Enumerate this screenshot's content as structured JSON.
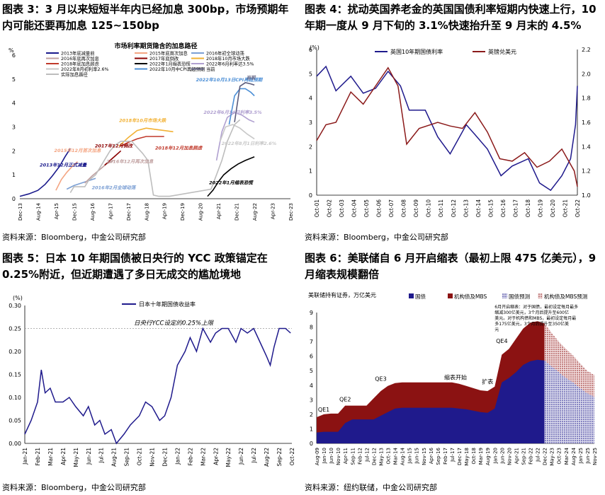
{
  "fig3": {
    "title": "图表 3：3 月以来短短半年内已经加息 300bp，市场预期年内可能还要再加息 125~150bp",
    "source": "资料来源：Bloomberg，中金公司研究部",
    "chart_data": {
      "type": "line",
      "chart_title": "市场利率期货隐含的加息路径",
      "yunit": "%",
      "ylim": [
        0,
        6
      ],
      "yticks": [
        "0",
        "1",
        "2",
        "3",
        "4",
        "5",
        "6"
      ],
      "xticks": [
        "Dec-13",
        "Aug-14",
        "Apr-15",
        "Dec-15",
        "Aug-16",
        "Apr-17",
        "Dec-17",
        "Aug-18",
        "Apr-19",
        "Dec-19",
        "Aug-20",
        "Apr-21",
        "Dec-21",
        "Aug-22",
        "Apr-23",
        "Dec-23"
      ],
      "legend": [
        {
          "name": "2013年底减量前",
          "color": "#1a1a8c"
        },
        {
          "name": "2015年底首次加息",
          "color": "#f4a582"
        },
        {
          "name": "2016年初全球动荡",
          "color": "#7b9fd4"
        },
        {
          "name": "2016年底再次加息",
          "color": "#c0a0a0"
        },
        {
          "name": "2017年底倒改",
          "color": "#8b0000"
        },
        {
          "name": "2018年10月市场大跌",
          "color": "#f2b134"
        },
        {
          "name": "2018年底加息顾虑",
          "color": "#c0392b"
        },
        {
          "name": "2022年1月缩表恐慌",
          "color": "#000000"
        },
        {
          "name": "2022年6月利率达3.5%",
          "color": "#b0a0d0"
        },
        {
          "name": "2022年8月初利率2.6%",
          "color": "#c8c8c8"
        },
        {
          "name": "2022年10月中CPI再超预期",
          "color": "#4c8fd6"
        },
        {
          "name": "当前",
          "color": "#5a5a7a"
        },
        {
          "name": "实际加息路径",
          "color": "#bdbdbd"
        }
      ],
      "series": [
        {
          "name": "2013年底减量前",
          "color": "#1a1a8c",
          "x": [
            0,
            0.5,
            1,
            1.4,
            1.8,
            2.2,
            2.5,
            2.8
          ],
          "y": [
            0.1,
            0.2,
            0.35,
            0.6,
            0.95,
            1.35,
            1.75,
            2.1
          ]
        },
        {
          "name": "2015年底首次加息",
          "color": "#f4a582",
          "x": [
            2.0,
            2.3,
            2.6,
            2.9,
            3.2
          ],
          "y": [
            0.35,
            0.8,
            1.1,
            1.35,
            1.55
          ]
        },
        {
          "name": "2016年初全球动荡",
          "color": "#7b9fd4",
          "x": [
            2.6,
            3.0,
            3.4,
            3.8,
            4.2
          ],
          "y": [
            0.4,
            0.55,
            0.65,
            0.75,
            0.85
          ]
        },
        {
          "name": "2016年底再次加息",
          "color": "#c0a0a0",
          "x": [
            3.6,
            4.0,
            4.4,
            4.8,
            5.2
          ],
          "y": [
            0.65,
            0.95,
            1.2,
            1.45,
            1.6
          ]
        },
        {
          "name": "2017年底倒改",
          "color": "#8b0000",
          "x": [
            4.7,
            5.0,
            5.3,
            5.6
          ],
          "y": [
            1.4,
            1.6,
            1.8,
            2.0
          ]
        },
        {
          "name": "2018年10月市场大跌",
          "color": "#f2b134",
          "x": [
            5.5,
            6.0,
            6.5,
            7.0,
            7.5,
            8.0,
            8.5
          ],
          "y": [
            2.2,
            2.55,
            2.85,
            2.95,
            2.9,
            2.85,
            2.8
          ]
        },
        {
          "name": "2018年底加息顾虑",
          "color": "#c0392b",
          "x": [
            5.6,
            6.0,
            6.5,
            7.0,
            7.5,
            8.0
          ],
          "y": [
            2.2,
            2.35,
            2.5,
            2.6,
            2.6,
            2.6
          ]
        },
        {
          "name": "2022年1月缩表恐慌",
          "color": "#000000",
          "x": [
            10.4,
            10.7,
            11.0,
            11.3,
            11.7,
            12.1,
            12.5,
            13.0
          ],
          "y": [
            0.1,
            0.35,
            0.7,
            1.0,
            1.25,
            1.45,
            1.6,
            1.75
          ]
        },
        {
          "name": "2022年6月利率达3.5%",
          "color": "#b0a0d0",
          "x": [
            10.9,
            11.2,
            11.5,
            11.9,
            12.3,
            12.7,
            13.0
          ],
          "y": [
            1.6,
            2.8,
            3.4,
            3.6,
            3.5,
            3.3,
            3.2
          ]
        },
        {
          "name": "2022年8月初利率2.6%",
          "color": "#c8c8c8",
          "x": [
            11.1,
            11.4,
            11.8,
            12.2,
            12.6,
            13.0
          ],
          "y": [
            2.4,
            3.0,
            3.1,
            2.95,
            2.7,
            2.5
          ]
        },
        {
          "name": "2022年10月中CPI再超预期",
          "color": "#4c8fd6",
          "x": [
            11.6,
            11.9,
            12.2,
            12.5,
            12.8,
            13.0
          ],
          "y": [
            3.1,
            4.3,
            4.6,
            4.6,
            4.45,
            4.3
          ]
        },
        {
          "name": "当前",
          "color": "#5a5a7a",
          "x": [
            11.9,
            12.2,
            12.5,
            12.8,
            13.0
          ],
          "y": [
            3.2,
            4.7,
            4.85,
            4.8,
            4.75
          ]
        },
        {
          "name": "实际加息路径",
          "color": "#bdbdbd",
          "x": [
            2.8,
            3.0,
            3.6,
            3.8,
            4.2,
            4.4,
            4.6,
            4.8,
            5.0,
            5.3,
            5.6,
            5.9,
            6.2,
            6.5,
            6.8,
            7.1,
            7.4,
            7.7,
            8.0,
            8.3,
            10.6,
            10.9,
            11.2,
            11.5,
            11.9,
            12.2
          ],
          "y": [
            0.25,
            0.5,
            0.5,
            0.75,
            1.0,
            1.25,
            1.5,
            1.75,
            2.0,
            2.25,
            2.4,
            2.4,
            2.4,
            2.15,
            1.9,
            1.6,
            0.15,
            0.1,
            0.1,
            0.1,
            0.4,
            1.0,
            1.6,
            2.4,
            3.1,
            3.3
          ]
        }
      ],
      "annotations": [
        {
          "text": "2013年12月正式减量",
          "x": 2.4,
          "y": 1.35,
          "color": "#1a1a8c"
        },
        {
          "text": "2015年12月首次加息",
          "x": 3.2,
          "y": 1.95,
          "color": "#f4a582"
        },
        {
          "text": "2017年12月倒改",
          "x": 5.2,
          "y": 2.15,
          "color": "#8b0000"
        },
        {
          "text": "2016年2月全球动荡",
          "x": 5.2,
          "y": 0.4,
          "color": "#7b9fd4"
        },
        {
          "text": "2016年12月再次加息",
          "x": 6.1,
          "y": 1.5,
          "color": "#c0a0a0"
        },
        {
          "text": "2018年10月市场大跌",
          "x": 6.8,
          "y": 3.2,
          "color": "#f2b134"
        },
        {
          "text": "2018年12月加息顾虑",
          "x": 8.8,
          "y": 2.05,
          "color": "#c0392b"
        },
        {
          "text": "2022年10月13日CPI再超预期",
          "x": 11.6,
          "y": 4.9,
          "color": "#4c8fd6"
        },
        {
          "text": "2022年6月14日利率3.5%",
          "x": 11.8,
          "y": 3.55,
          "color": "#b0a0d0"
        },
        {
          "text": "2022年8月1日利率2.6%",
          "x": 12.7,
          "y": 2.25,
          "color": "#c8c8c8"
        },
        {
          "text": "2022年1月缩表恐慌",
          "x": 11.7,
          "y": 0.6,
          "color": "#000000"
        },
        {
          "text": "当前",
          "x": 12.8,
          "y": 5.0,
          "color": "#5a5a7a"
        }
      ]
    }
  },
  "fig4": {
    "title": "图表 4：扰动英国养老金的英国国债利率短期内快速上行，10 年期一度从 9 月下旬的 3.1%快速抬升至 9 月末的 4.5%",
    "source": "资料来源：Bloomberg，中金公司研究部",
    "chart_data": {
      "type": "line",
      "yunit_left": "(%)",
      "ylim_left": [
        0,
        6
      ],
      "yticks_left": [
        "0",
        "1",
        "2",
        "3",
        "4",
        "5",
        "6"
      ],
      "ylim_right": [
        1.0,
        2.2
      ],
      "yticks_right": [
        "1.0",
        "1.2",
        "1.4",
        "1.6",
        "1.8",
        "2.0",
        "2.2"
      ],
      "xticks": [
        "Oct-01",
        "Oct-02",
        "Oct-03",
        "Oct-04",
        "Oct-05",
        "Oct-06",
        "Oct-07",
        "Oct-08",
        "Oct-09",
        "Oct-10",
        "Oct-11",
        "Oct-12",
        "Oct-13",
        "Oct-14",
        "Oct-15",
        "Oct-16",
        "Oct-17",
        "Oct-18",
        "Oct-19",
        "Oct-20",
        "Oct-21",
        "Oct-22"
      ],
      "series": [
        {
          "name": "英国10年期国债利率",
          "color": "#1f1a8c",
          "axis": "left",
          "x": [
            2001.75,
            2002.5,
            2003.3,
            2004.5,
            2005.5,
            2006.5,
            2007.5,
            2008.5,
            2009.2,
            2010.5,
            2011.5,
            2012.5,
            2013.8,
            2014.5,
            2015.5,
            2016.6,
            2017.5,
            2018.8,
            2019.7,
            2020.6,
            2021.5,
            2022.2,
            2022.6,
            2022.75
          ],
          "y": [
            4.9,
            5.3,
            4.3,
            4.9,
            4.2,
            4.4,
            5.1,
            4.5,
            3.5,
            3.5,
            2.4,
            1.7,
            2.9,
            2.5,
            1.9,
            0.8,
            1.2,
            1.5,
            0.5,
            0.2,
            0.8,
            1.5,
            2.9,
            4.5
          ]
        },
        {
          "name": "英镑兑美元",
          "color": "#8b1a1a",
          "axis": "right",
          "x": [
            2001.75,
            2002.5,
            2003.3,
            2004.5,
            2005.5,
            2006.5,
            2007.5,
            2008.3,
            2009.0,
            2010.0,
            2011.5,
            2012.5,
            2013.5,
            2014.5,
            2015.5,
            2016.5,
            2017.5,
            2018.5,
            2019.5,
            2020.5,
            2021.5,
            2022.5,
            2022.75
          ],
          "y": [
            1.45,
            1.58,
            1.6,
            1.85,
            1.75,
            1.9,
            2.05,
            1.9,
            1.42,
            1.55,
            1.6,
            1.57,
            1.55,
            1.68,
            1.52,
            1.3,
            1.28,
            1.35,
            1.23,
            1.28,
            1.38,
            1.2,
            1.07
          ]
        }
      ]
    }
  },
  "fig5": {
    "title": "图表 5：日本 10 年期国债被日央行的 YCC 政策锚定在 0.25%附近，但近期遭遇了多日无成交的尴尬境地",
    "source": "资料来源：Bloomberg，中金公司研究部",
    "chart_data": {
      "type": "line",
      "yunit": "(%)",
      "ylim": [
        0,
        0.3
      ],
      "yticks": [
        "0.00",
        "0.05",
        "0.10",
        "0.15",
        "0.20",
        "0.25",
        "0.30"
      ],
      "xticks": [
        "Jan-21",
        "Feb-21",
        "Mar-21",
        "Apr-21",
        "May-21",
        "Jun-21",
        "Jul-21",
        "Aug-21",
        "Sep-21",
        "Oct-21",
        "Nov-21",
        "Dec-21",
        "Jan-22",
        "Feb-22",
        "Mar-22",
        "Apr-22",
        "May-22",
        "Jun-22",
        "Jul-22",
        "Aug-22",
        "Sep-22",
        "Oct-22"
      ],
      "cap_label": "日央行YCC设定的0.25%上限",
      "cap_value": 0.25,
      "series": [
        {
          "name": "日本十年期国债收益率",
          "color": "#1f1a8c",
          "x": [
            0,
            0.5,
            1.0,
            1.3,
            1.6,
            2.0,
            2.4,
            3.0,
            3.5,
            4.0,
            4.6,
            5.0,
            5.5,
            5.9,
            6.3,
            6.8,
            7.2,
            7.8,
            8.3,
            9.0,
            9.5,
            10.0,
            10.6,
            11.0,
            11.5,
            12.0,
            12.6,
            13.0,
            13.5,
            14.0,
            14.6,
            15.0,
            15.5,
            16.0,
            16.6,
            17.0,
            17.5,
            18.0,
            18.5,
            19.0,
            19.3,
            19.6,
            20.0,
            20.5,
            20.9
          ],
          "y": [
            0.02,
            0.05,
            0.09,
            0.16,
            0.11,
            0.12,
            0.09,
            0.09,
            0.1,
            0.08,
            0.06,
            0.08,
            0.04,
            0.05,
            0.02,
            0.03,
            0.0,
            0.02,
            0.04,
            0.06,
            0.09,
            0.08,
            0.05,
            0.06,
            0.1,
            0.17,
            0.2,
            0.23,
            0.2,
            0.25,
            0.22,
            0.24,
            0.25,
            0.25,
            0.22,
            0.25,
            0.24,
            0.25,
            0.22,
            0.19,
            0.17,
            0.21,
            0.25,
            0.25,
            0.24
          ]
        }
      ]
    }
  },
  "fig6": {
    "title": "图表 6：美联储自 6 月开启缩表（最初上限 475 亿美元），9 月缩表规模翻倍",
    "source": "资料来源：纽约联储，中金公司研究部",
    "chart_data": {
      "type": "area",
      "yunit": "美联储持有证券，万亿美元",
      "ylim": [
        0,
        9
      ],
      "yticks": [
        "0",
        "1",
        "2",
        "3",
        "4",
        "5",
        "6",
        "7",
        "8",
        "9"
      ],
      "xticks": [
        "Aug-09",
        "Jan-10",
        "Jun-10",
        "Nov-10",
        "Apr-11",
        "Sep-11",
        "Feb-12",
        "Jul-12",
        "Dec-12",
        "May-13",
        "Oct-13",
        "Mar-14",
        "Aug-14",
        "Jan-15",
        "Jun-15",
        "Nov-15",
        "Apr-16",
        "Sep-16",
        "Feb-17",
        "Jul-17",
        "Dec-17",
        "May-18",
        "Oct-18",
        "Mar-19",
        "Aug-19",
        "Jan-20",
        "Jun-20",
        "Nov-20",
        "Apr-21",
        "Sep-21",
        "Feb-22",
        "Jul-22",
        "Dec-22",
        "May-23",
        "Oct-23",
        "Mar-24",
        "Aug-24",
        "Jan-25",
        "Jun-25",
        "Nov-25"
      ],
      "legend": [
        "国债",
        "机构债及MBS",
        "国债预测",
        "机构债及MBS预测"
      ],
      "colors": {
        "treasury": "#1f1a8c",
        "mbs": "#8b1212"
      },
      "note": "6月开启缩表：对于国债，最初设定每月最多缩减300亿美元，3个月后提升至600亿美元。对于机构债和MBS，最初设定每月最多175亿美元，3个月后提升至350亿美元",
      "event_labels": [
        {
          "text": "QE1",
          "x": 1,
          "y": 2.2
        },
        {
          "text": "QE2",
          "x": 4,
          "y": 2.9
        },
        {
          "text": "QE3",
          "x": 9,
          "y": 4.3
        },
        {
          "text": "缩表开始",
          "x": 19.5,
          "y": 4.4
        },
        {
          "text": "扩表",
          "x": 24,
          "y": 4.1
        },
        {
          "text": "QE4",
          "x": 26,
          "y": 6.9
        }
      ],
      "total": [
        1.8,
        2.0,
        2.05,
        2.05,
        2.6,
        2.6,
        2.6,
        2.6,
        3.1,
        3.6,
        3.95,
        4.15,
        4.2,
        4.2,
        4.2,
        4.2,
        4.2,
        4.2,
        4.2,
        4.2,
        4.1,
        3.95,
        3.8,
        3.65,
        3.6,
        3.9,
        6.1,
        6.5,
        7.2,
        7.9,
        8.3,
        8.4,
        8.25,
        7.6,
        7.0,
        6.5,
        6.05,
        5.5,
        5.0,
        4.7
      ],
      "treasury": [
        0.75,
        0.8,
        0.8,
        0.8,
        1.4,
        1.65,
        1.65,
        1.65,
        1.65,
        1.9,
        2.15,
        2.4,
        2.45,
        2.45,
        2.45,
        2.45,
        2.45,
        2.45,
        2.45,
        2.45,
        2.4,
        2.35,
        2.25,
        2.15,
        2.1,
        2.4,
        4.2,
        4.5,
        4.9,
        5.4,
        5.65,
        5.75,
        5.7,
        5.3,
        4.9,
        4.5,
        4.2,
        3.8,
        3.45,
        3.2
      ],
      "forecast_start": 32
    }
  }
}
